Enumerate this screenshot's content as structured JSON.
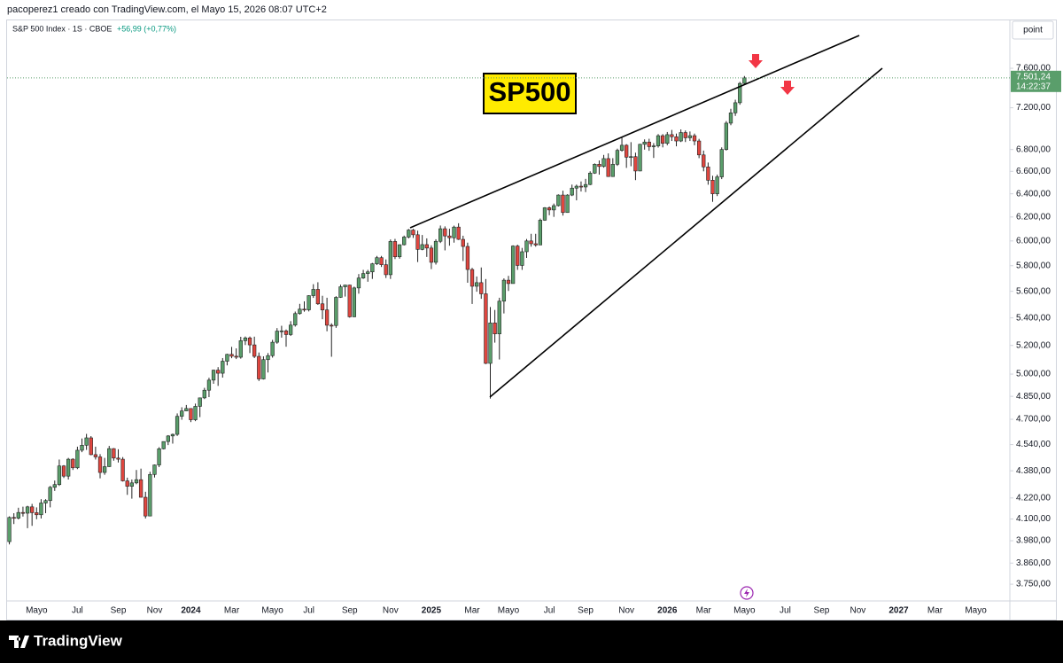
{
  "title": "pacoperez1 creado con TradingView.com, el Mayo 15, 2026 08:07 UTC+2",
  "symbol": "S&P 500 Index · 1S · CBOE",
  "change": "+56,99 (+0,77%)",
  "scale_button": "point",
  "price_label": "7.501,24",
  "countdown": "14:22:37",
  "annotation": "SP500",
  "brand": "TradingView",
  "chart_data": {
    "type": "candlestick",
    "log_scale": true,
    "grid": false,
    "up_color": "#5a9e6b",
    "down_color": "#e0463f",
    "wick_color": "#222222",
    "ylim": [
      3665,
      8125
    ],
    "yticks": [
      {
        "value": 3750,
        "label": "3.750,00"
      },
      {
        "value": 3860,
        "label": "3.860,00"
      },
      {
        "value": 3980,
        "label": "3.980,00"
      },
      {
        "value": 4100,
        "label": "4.100,00"
      },
      {
        "value": 4220,
        "label": "4.220,00"
      },
      {
        "value": 4380,
        "label": "4.380,00"
      },
      {
        "value": 4540,
        "label": "4.540,00"
      },
      {
        "value": 4700,
        "label": "4.700,00"
      },
      {
        "value": 4850,
        "label": "4.850,00"
      },
      {
        "value": 5000,
        "label": "5.000,00"
      },
      {
        "value": 5200,
        "label": "5.200,00"
      },
      {
        "value": 5400,
        "label": "5.400,00"
      },
      {
        "value": 5600,
        "label": "5.600,00"
      },
      {
        "value": 5800,
        "label": "5.800,00"
      },
      {
        "value": 6000,
        "label": "6.000,00"
      },
      {
        "value": 6200,
        "label": "6.200,00"
      },
      {
        "value": 6400,
        "label": "6.400,00"
      },
      {
        "value": 6600,
        "label": "6.600,00"
      },
      {
        "value": 6800,
        "label": "6.800,00"
      },
      {
        "value": 7200,
        "label": "7.200,00"
      },
      {
        "value": 7600,
        "label": "7.600,00"
      }
    ],
    "categories": [
      null,
      null,
      null,
      null,
      null,
      null,
      "Mayo",
      null,
      null,
      null,
      null,
      null,
      null,
      null,
      null,
      "Jul",
      null,
      null,
      null,
      null,
      null,
      null,
      null,
      null,
      "Sep",
      null,
      null,
      null,
      null,
      null,
      null,
      null,
      "Nov",
      null,
      null,
      null,
      null,
      null,
      null,
      null,
      "2024",
      null,
      null,
      null,
      null,
      null,
      null,
      null,
      null,
      "Mar",
      null,
      null,
      null,
      null,
      null,
      null,
      null,
      null,
      "Mayo",
      null,
      null,
      null,
      null,
      null,
      null,
      null,
      "Jul",
      null,
      null,
      null,
      null,
      null,
      null,
      null,
      null,
      "Sep",
      null,
      null,
      null,
      null,
      null,
      null,
      null,
      null,
      "Nov",
      null,
      null,
      null,
      null,
      null,
      null,
      null,
      null,
      "2025",
      null,
      null,
      null,
      null,
      null,
      null,
      null,
      null,
      "Mar",
      null,
      null,
      null,
      null,
      null,
      null,
      null,
      "Mayo",
      null,
      null,
      null,
      null,
      null,
      null,
      null,
      null,
      "Jul",
      null,
      null,
      null,
      null,
      null,
      null,
      null,
      "Sep",
      null,
      null,
      null,
      null,
      null,
      null,
      null,
      null,
      "Nov",
      null,
      null,
      null,
      null,
      null,
      null,
      null,
      null,
      "2026",
      null,
      null,
      null,
      null,
      null,
      null,
      null,
      "Mar",
      null,
      null,
      null,
      null,
      null,
      null,
      null,
      null,
      "Mayo",
      null,
      null,
      null,
      null,
      null,
      null,
      null,
      null,
      "Jul",
      null,
      null,
      null,
      null,
      null,
      null,
      null,
      "Sep",
      null,
      null,
      null,
      null,
      null,
      null,
      null,
      "Nov",
      null,
      null,
      null,
      null,
      null,
      null,
      null,
      null,
      "2027",
      null,
      null,
      null,
      null,
      null,
      null,
      null,
      "Mar",
      null,
      null,
      null,
      null,
      null,
      null,
      null,
      null,
      "Mayo",
      null,
      null,
      null,
      null,
      null,
      null,
      null
    ],
    "open": [
      3975,
      4109,
      4105,
      4137,
      4133,
      4169,
      4136,
      4124,
      4191,
      4205,
      4282,
      4298,
      4409,
      4348,
      4450,
      4398,
      4505,
      4536,
      4582,
      4478,
      4464,
      4370,
      4405,
      4515,
      4457,
      4450,
      4320,
      4288,
      4308,
      4327,
      4224,
      4117,
      4358,
      4415,
      4514,
      4559,
      4594,
      4604,
      4719,
      4754,
      4770,
      4697,
      4784,
      4840,
      4891,
      4959,
      5027,
      5006,
      5089,
      5137,
      5124,
      5117,
      5234,
      5254,
      5204,
      5123,
      4967,
      5100,
      5128,
      5223,
      5303,
      5305,
      5278,
      5347,
      5432,
      5465,
      5460,
      5567,
      5615,
      5505,
      5459,
      5346,
      5344,
      5554,
      5635,
      5648,
      5408,
      5626,
      5703,
      5738,
      5751,
      5815,
      5864,
      5808,
      5729,
      5996,
      5871,
      5969,
      6032,
      6090,
      6051,
      5931,
      5970,
      5942,
      5827,
      5997,
      6101,
      6041,
      6026,
      6115,
      6013,
      5955,
      5770,
      5639,
      5667,
      5581,
      5074,
      5363,
      5283,
      5525,
      5686,
      5660,
      5958,
      5802,
      5912,
      6000,
      5977,
      5967,
      6173,
      6279,
      6260,
      6297,
      6389,
      6238,
      6389,
      6450,
      6467,
      6460,
      6482,
      6584,
      6664,
      6644,
      6716,
      6553,
      6664,
      6792,
      6840,
      6729,
      6734,
      6603,
      6849,
      6870,
      6827,
      6834,
      6930,
      6858,
      6940,
      6920,
      6880,
      6960,
      6910,
      6930,
      6880,
      6750,
      6640,
      6520,
      6400,
      6550,
      6800,
      7050,
      7150,
      7250,
      7444.25,
      null,
      null,
      null,
      null,
      null,
      null,
      null,
      null,
      null,
      null,
      null,
      null,
      null,
      null,
      null,
      null,
      null,
      null,
      null,
      null,
      null,
      null,
      null,
      null,
      null,
      null,
      null,
      null,
      null,
      null,
      null,
      null,
      null,
      null,
      null,
      null,
      null,
      null,
      null,
      null,
      null,
      null,
      null,
      null,
      null,
      null,
      null,
      null,
      null,
      null,
      null,
      null,
      null,
      null,
      null,
      null,
      null,
      null
    ],
    "high": [
      4115,
      4133,
      4164,
      4170,
      4175,
      4186,
      4166,
      4213,
      4213,
      4290,
      4322,
      4448,
      4414,
      4458,
      4456,
      4527,
      4578,
      4607,
      4593,
      4527,
      4481,
      4458,
      4532,
      4518,
      4511,
      4463,
      4339,
      4328,
      4385,
      4393,
      4256,
      4374,
      4418,
      4524,
      4560,
      4599,
      4609,
      4738,
      4778,
      4793,
      4754,
      4802,
      4842,
      4907,
      4975,
      5030,
      5048,
      5111,
      5141,
      5190,
      5179,
      5262,
      5264,
      5264,
      5263,
      5150,
      5123,
      5146,
      5240,
      5325,
      5342,
      5315,
      5376,
      5447,
      5505,
      5524,
      5570,
      5655,
      5670,
      5566,
      5551,
      5360,
      5563,
      5651,
      5651,
      5651,
      5636,
      5734,
      5767,
      5767,
      5822,
      5878,
      5878,
      5850,
      6012,
      6017,
      5972,
      6044,
      6099,
      6100,
      6085,
      6049,
      6021,
      5964,
      6014,
      6128,
      6121,
      6101,
      6127,
      6147,
      6043,
      5986,
      5783,
      5715,
      5786,
      5695,
      5481,
      5459,
      5551,
      5700,
      5720,
      5964,
      5969,
      5943,
      6016,
      6059,
      6059,
      6187,
      6284,
      6290,
      6315,
      6395,
      6427,
      6396,
      6481,
      6481,
      6509,
      6532,
      6600,
      6672,
      6699,
      6750,
      6764,
      6720,
      6808,
      6920,
      6850,
      6869,
      6771,
      6853,
      6895,
      6901,
      6860,
      6945,
      6945,
      6965,
      6985,
      6950,
      6990,
      6980,
      6970,
      6950,
      6900,
      6790,
      6680,
      6560,
      6570,
      6820,
      7070,
      7190,
      7280,
      7460,
      7520,
      null,
      null,
      null,
      null,
      null,
      null,
      null,
      null,
      null,
      null,
      null,
      null,
      null,
      null,
      null,
      null,
      null,
      null,
      null,
      null,
      null,
      null,
      null,
      null,
      null,
      null,
      null,
      null,
      null,
      null,
      null,
      null,
      null,
      null,
      null,
      null,
      null,
      null,
      null,
      null,
      null,
      null,
      null,
      null,
      null,
      null,
      null,
      null,
      null,
      null,
      null,
      null,
      null,
      null,
      null,
      null,
      null,
      null
    ],
    "low": [
      3960,
      4072,
      4098,
      4114,
      4049,
      4062,
      4099,
      4103,
      4133,
      4166,
      4261,
      4290,
      4337,
      4328,
      4385,
      4390,
      4493,
      4507,
      4474,
      4448,
      4335,
      4356,
      4403,
      4441,
      4430,
      4316,
      4238,
      4216,
      4300,
      4223,
      4103,
      4117,
      4340,
      4402,
      4510,
      4537,
      4546,
      4594,
      4697,
      4752,
      4682,
      4688,
      4714,
      4832,
      4845,
      4934,
      4920,
      4976,
      5060,
      5110,
      5104,
      5107,
      5203,
      5146,
      5111,
      4953,
      4963,
      5011,
      5114,
      5212,
      5256,
      5191,
      5268,
      5336,
      5424,
      5446,
      5448,
      5550,
      5497,
      5390,
      5302,
      5120,
      5327,
      5550,
      5560,
      5402,
      5406,
      5582,
      5696,
      5674,
      5696,
      5805,
      5790,
      5703,
      5696,
      5853,
      5856,
      5963,
      6021,
      6025,
      5829,
      5924,
      5870,
      5773,
      5809,
      5983,
      5923,
      5961,
      5986,
      6008,
      5837,
      5666,
      5504,
      5597,
      5543,
      5069,
      4835,
      5220,
      5101,
      5433,
      5603,
      5660,
      5767,
      5767,
      5862,
      5953,
      5953,
      5967,
      6168,
      6215,
      6201,
      6290,
      6212,
      6236,
      6380,
      6343,
      6420,
      6415,
      6476,
      6577,
      6570,
      6633,
      6550,
      6550,
      6649,
      6780,
      6631,
      6646,
      6521,
      6601,
      6799,
      6788,
      6722,
      6818,
      6820,
      6840,
      6880,
      6830,
      6870,
      6870,
      6880,
      6840,
      6720,
      6600,
      6480,
      6330,
      6380,
      6530,
      6790,
      7030,
      7120,
      7230,
      7430,
      null,
      null,
      null,
      null,
      null,
      null,
      null,
      null,
      null,
      null,
      null,
      null,
      null,
      null,
      null,
      null,
      null,
      null,
      null,
      null,
      null,
      null,
      null,
      null,
      null,
      null,
      null,
      null,
      null,
      null,
      null,
      null,
      null,
      null,
      null,
      null,
      null,
      null,
      null,
      null,
      null,
      null,
      null,
      null,
      null,
      null,
      null,
      null,
      null,
      null,
      null,
      null,
      null,
      null,
      null,
      null,
      null,
      null
    ],
    "close": [
      4109,
      4105,
      4137,
      4133,
      4169,
      4136,
      4124,
      4191,
      4205,
      4282,
      4298,
      4409,
      4348,
      4450,
      4398,
      4505,
      4536,
      4582,
      4478,
      4464,
      4370,
      4405,
      4515,
      4457,
      4450,
      4320,
      4288,
      4308,
      4327,
      4224,
      4117,
      4358,
      4415,
      4514,
      4559,
      4594,
      4604,
      4719,
      4754,
      4770,
      4697,
      4784,
      4840,
      4891,
      4959,
      5027,
      5006,
      5089,
      5137,
      5124,
      5117,
      5234,
      5254,
      5204,
      5123,
      4967,
      5100,
      5128,
      5223,
      5303,
      5305,
      5278,
      5347,
      5432,
      5465,
      5460,
      5567,
      5615,
      5505,
      5459,
      5346,
      5344,
      5554,
      5635,
      5648,
      5408,
      5626,
      5703,
      5738,
      5751,
      5815,
      5864,
      5808,
      5729,
      5996,
      5871,
      5969,
      6032,
      6090,
      6051,
      5931,
      5970,
      5942,
      5827,
      5997,
      6101,
      6041,
      6026,
      6115,
      6013,
      5955,
      5770,
      5639,
      5667,
      5581,
      5074,
      5363,
      5283,
      5525,
      5686,
      5660,
      5958,
      5802,
      5912,
      6000,
      5977,
      5967,
      6173,
      6279,
      6260,
      6297,
      6389,
      6238,
      6389,
      6450,
      6467,
      6460,
      6482,
      6584,
      6664,
      6644,
      6716,
      6553,
      6664,
      6792,
      6840,
      6729,
      6734,
      6603,
      6849,
      6870,
      6827,
      6834,
      6930,
      6858,
      6940,
      6920,
      6880,
      6960,
      6910,
      6930,
      6880,
      6750,
      6640,
      6520,
      6400,
      6550,
      6800,
      7050,
      7150,
      7250,
      7444.25,
      7501.24,
      null,
      null,
      null,
      null,
      null,
      null,
      null,
      null,
      null,
      null,
      null,
      null,
      null,
      null,
      null,
      null,
      null,
      null,
      null,
      null,
      null,
      null,
      null,
      null,
      null,
      null,
      null,
      null,
      null,
      null,
      null,
      null,
      null,
      null,
      null,
      null,
      null,
      null,
      null,
      null,
      null,
      null,
      null,
      null,
      null,
      null,
      null,
      null,
      null,
      null,
      null,
      null,
      null,
      null,
      null,
      null,
      null,
      null
    ]
  }
}
